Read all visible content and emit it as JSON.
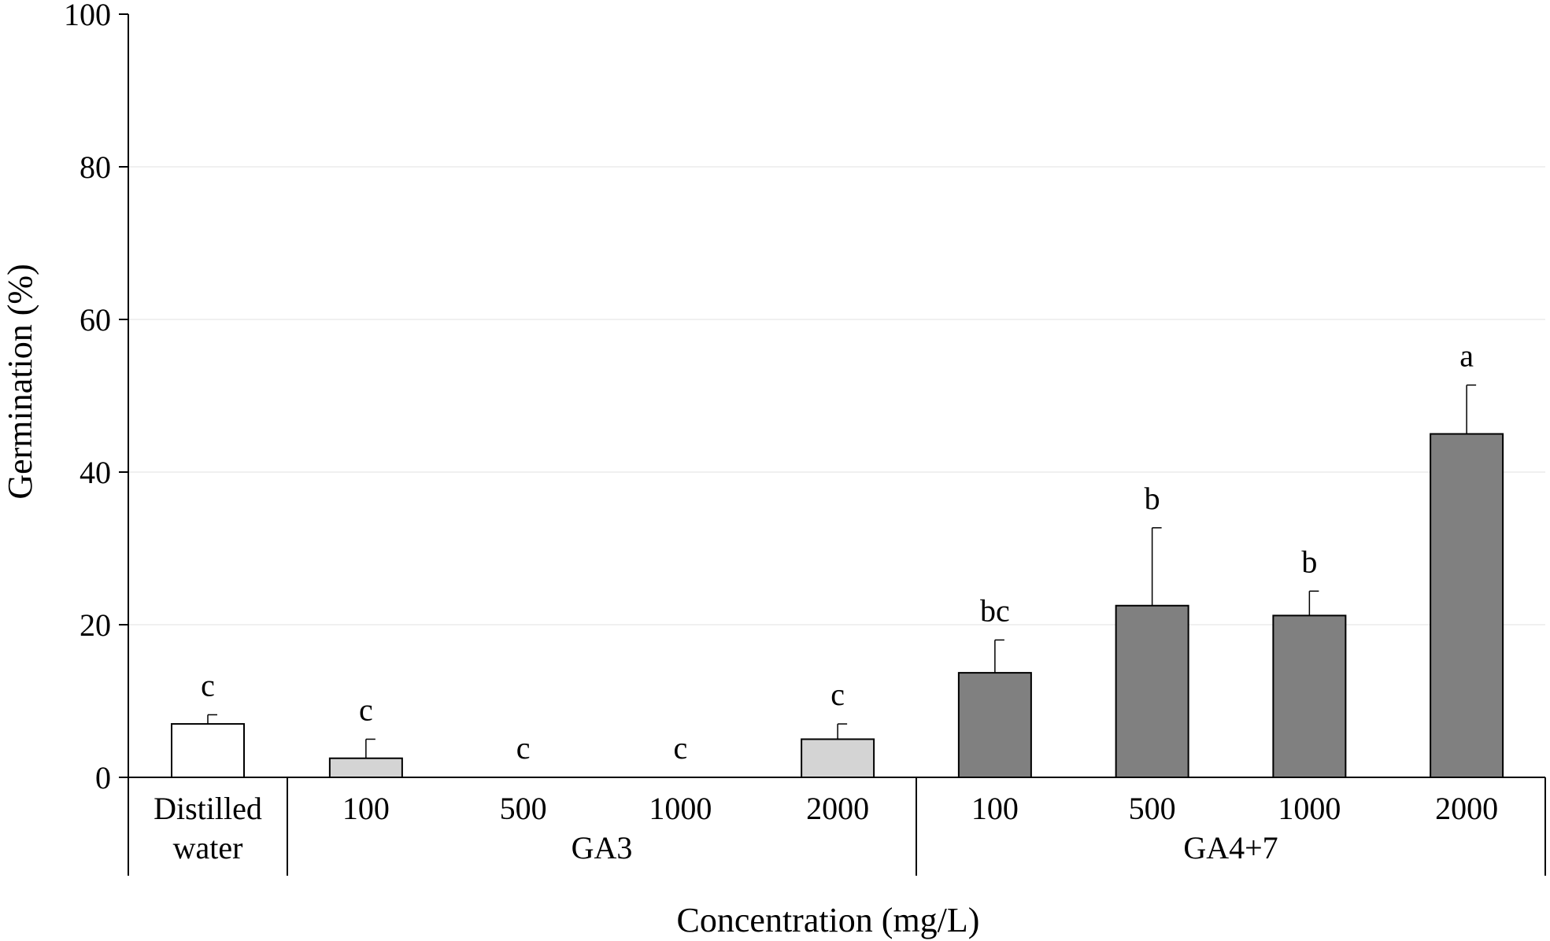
{
  "chart_data": {
    "type": "bar",
    "title": "",
    "ylabel": "Germination (%)",
    "xlabel": "Concentration (mg/L)",
    "ylim": [
      0,
      100
    ],
    "yticks": [
      0,
      20,
      40,
      60,
      80,
      100
    ],
    "grid": "horizontal",
    "categories": [
      "Distilled water",
      "100",
      "500",
      "1000",
      "2000",
      "100",
      "500",
      "1000",
      "2000"
    ],
    "category_lines": [
      [
        "Distilled",
        "water"
      ],
      [
        "100"
      ],
      [
        "500"
      ],
      [
        "1000"
      ],
      [
        "2000"
      ],
      [
        "100"
      ],
      [
        "500"
      ],
      [
        "1000"
      ],
      [
        "2000"
      ]
    ],
    "groups": [
      {
        "label": "",
        "categories": [
          0
        ]
      },
      {
        "label": "GA3",
        "categories": [
          1,
          2,
          3,
          4
        ]
      },
      {
        "label": "GA4+7",
        "categories": [
          5,
          6,
          7,
          8
        ]
      }
    ],
    "values": [
      7.0,
      2.5,
      0,
      0,
      5.0,
      13.7,
      22.5,
      21.2,
      45.0
    ],
    "errors": [
      1.2,
      2.5,
      0,
      0,
      2.0,
      4.3,
      10.2,
      3.2,
      6.4
    ],
    "significance": [
      "c",
      "c",
      "c",
      "c",
      "c",
      "bc",
      "b",
      "b",
      "a"
    ],
    "bar_colors": [
      "#ffffff",
      "#d4d4d4",
      "#d4d4d4",
      "#d4d4d4",
      "#d4d4d4",
      "#808080",
      "#808080",
      "#808080",
      "#808080"
    ]
  }
}
